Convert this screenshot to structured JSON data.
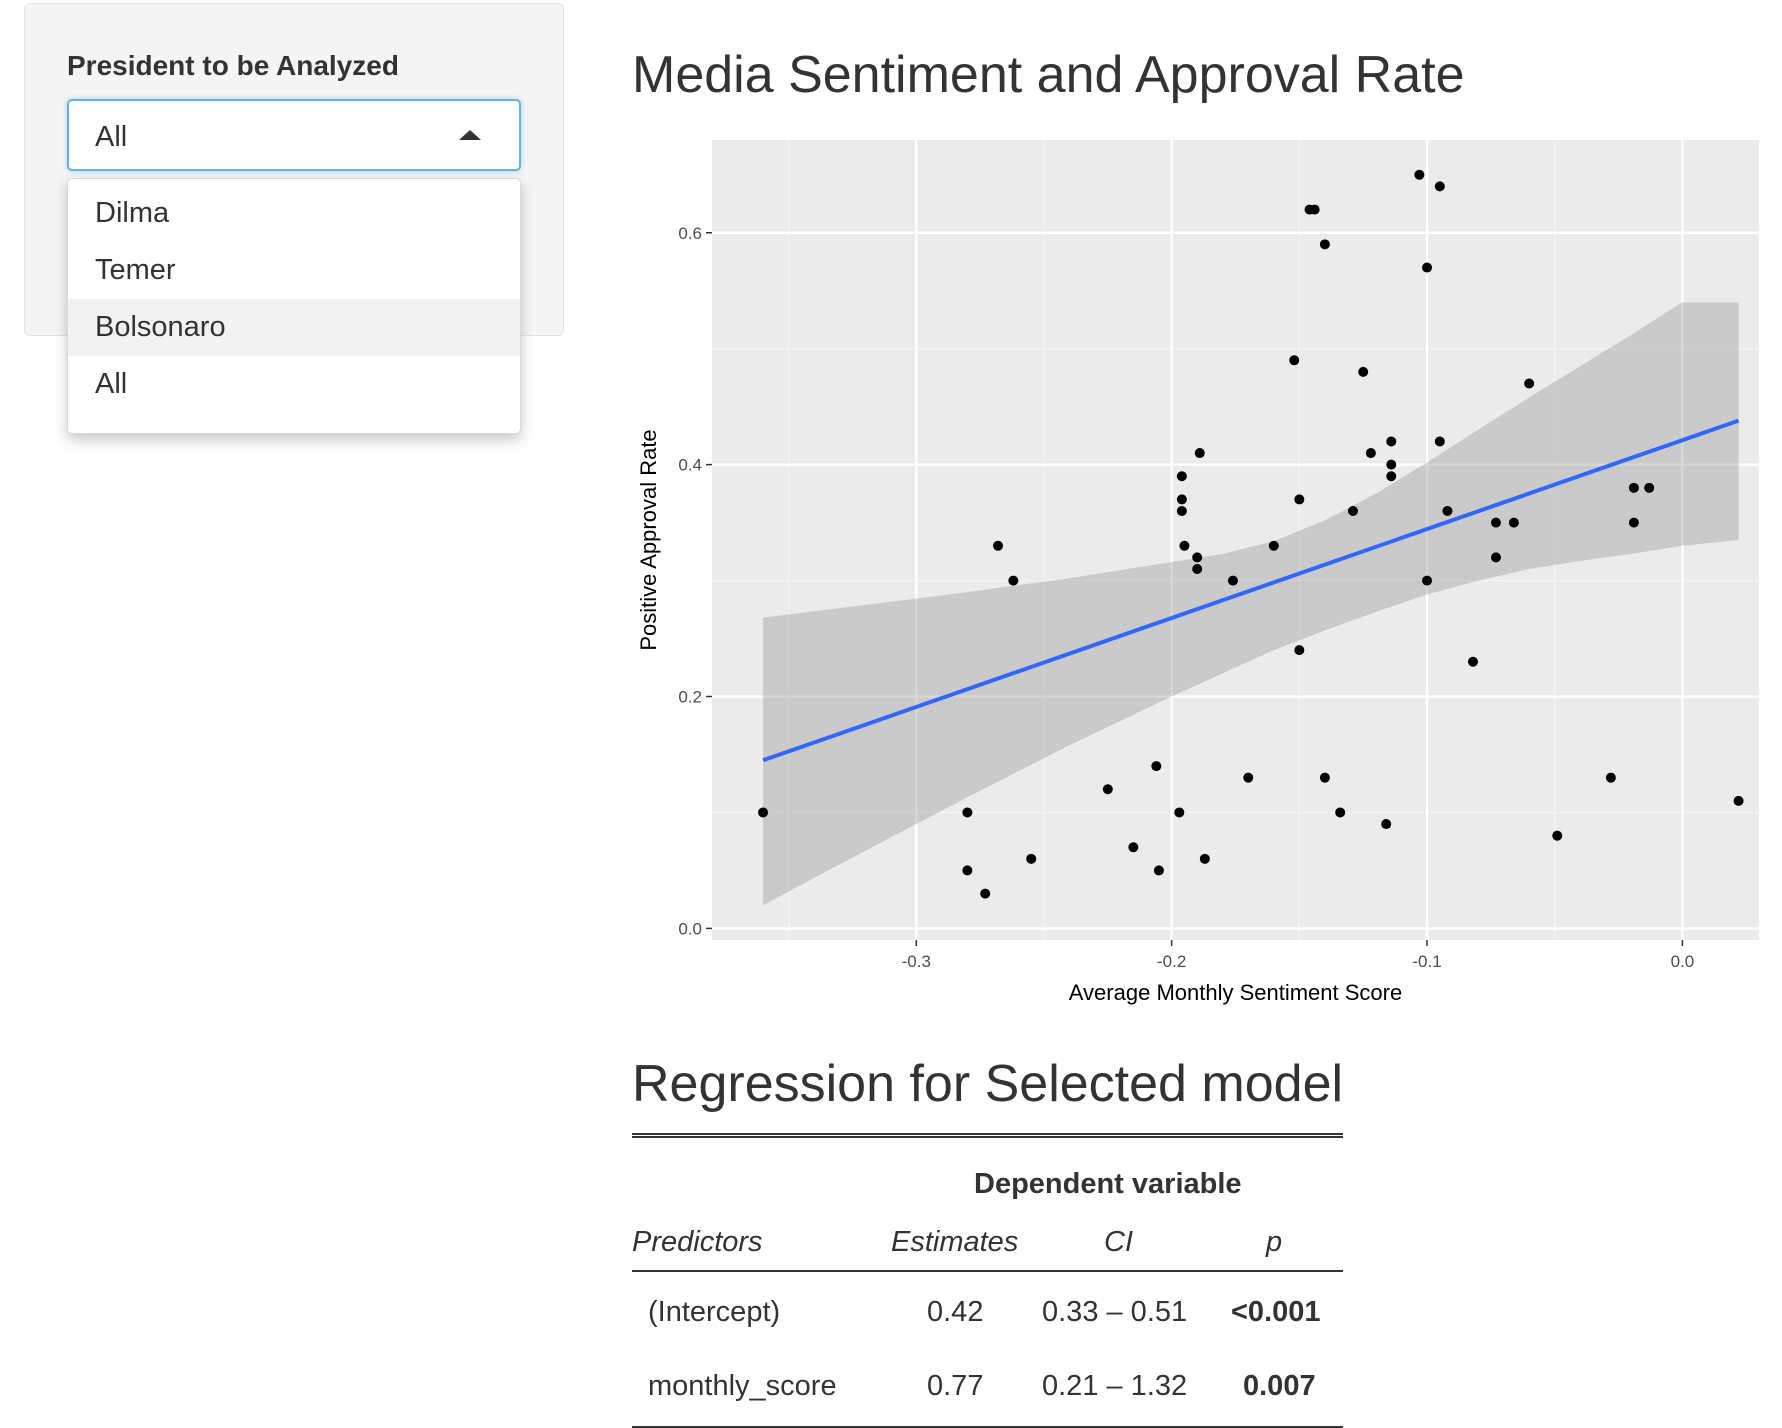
{
  "sidebar": {
    "label": "President to be Analyzed",
    "selected": "All",
    "options": [
      "Dilma",
      "Temer",
      "Bolsonaro",
      "All"
    ],
    "highlighted_option": "Bolsonaro"
  },
  "plot": {
    "heading": "Media Sentiment and Approval Rate",
    "chart_data": {
      "type": "scatter",
      "xlabel": "Average Monthly Sentiment Score",
      "ylabel": "Positive Approval Rate",
      "xlim": [
        -0.38,
        0.03
      ],
      "ylim": [
        -0.01,
        0.68
      ],
      "x_ticks": [
        -0.3,
        -0.2,
        -0.1,
        0.0
      ],
      "x_tick_labels": [
        "-0.3",
        "-0.2",
        "-0.1",
        "0.0"
      ],
      "y_ticks": [
        0.0,
        0.2,
        0.4,
        0.6
      ],
      "y_tick_labels": [
        "0.0",
        "0.2",
        "0.4",
        "0.6"
      ],
      "grid": true,
      "points": [
        [
          -0.36,
          0.1
        ],
        [
          -0.28,
          0.1
        ],
        [
          -0.28,
          0.05
        ],
        [
          -0.273,
          0.03
        ],
        [
          -0.268,
          0.33
        ],
        [
          -0.262,
          0.3
        ],
        [
          -0.255,
          0.06
        ],
        [
          -0.225,
          0.12
        ],
        [
          -0.215,
          0.07
        ],
        [
          -0.206,
          0.14
        ],
        [
          -0.205,
          0.05
        ],
        [
          -0.197,
          0.1
        ],
        [
          -0.196,
          0.39
        ],
        [
          -0.196,
          0.37
        ],
        [
          -0.196,
          0.36
        ],
        [
          -0.195,
          0.33
        ],
        [
          -0.19,
          0.32
        ],
        [
          -0.19,
          0.31
        ],
        [
          -0.189,
          0.41
        ],
        [
          -0.187,
          0.06
        ],
        [
          -0.176,
          0.3
        ],
        [
          -0.17,
          0.13
        ],
        [
          -0.16,
          0.33
        ],
        [
          -0.152,
          0.49
        ],
        [
          -0.15,
          0.37
        ],
        [
          -0.15,
          0.24
        ],
        [
          -0.146,
          0.62
        ],
        [
          -0.144,
          0.62
        ],
        [
          -0.14,
          0.59
        ],
        [
          -0.14,
          0.13
        ],
        [
          -0.134,
          0.1
        ],
        [
          -0.129,
          0.36
        ],
        [
          -0.125,
          0.48
        ],
        [
          -0.122,
          0.41
        ],
        [
          -0.116,
          0.09
        ],
        [
          -0.114,
          0.42
        ],
        [
          -0.114,
          0.4
        ],
        [
          -0.114,
          0.39
        ],
        [
          -0.103,
          0.65
        ],
        [
          -0.1,
          0.57
        ],
        [
          -0.1,
          0.3
        ],
        [
          -0.095,
          0.64
        ],
        [
          -0.095,
          0.42
        ],
        [
          -0.092,
          0.36
        ],
        [
          -0.082,
          0.23
        ],
        [
          -0.073,
          0.35
        ],
        [
          -0.073,
          0.32
        ],
        [
          -0.066,
          0.35
        ],
        [
          -0.06,
          0.47
        ],
        [
          -0.049,
          0.08
        ],
        [
          -0.028,
          0.13
        ],
        [
          -0.019,
          0.38
        ],
        [
          -0.019,
          0.35
        ],
        [
          -0.013,
          0.38
        ],
        [
          0.022,
          0.11
        ]
      ],
      "fit_line": {
        "x": [
          -0.36,
          0.022
        ],
        "y": [
          0.145,
          0.438
        ],
        "color": "#3366ff"
      },
      "confidence_band": {
        "x": [
          -0.36,
          -0.32,
          -0.28,
          -0.24,
          -0.2,
          -0.18,
          -0.16,
          -0.14,
          -0.12,
          -0.1,
          -0.08,
          -0.06,
          -0.04,
          -0.02,
          0.0,
          0.022
        ],
        "lower": [
          0.02,
          0.067,
          0.113,
          0.158,
          0.2,
          0.22,
          0.24,
          0.257,
          0.273,
          0.288,
          0.3,
          0.31,
          0.317,
          0.323,
          0.33,
          0.335
        ],
        "upper": [
          0.268,
          0.279,
          0.29,
          0.302,
          0.316,
          0.323,
          0.334,
          0.352,
          0.375,
          0.402,
          0.43,
          0.458,
          0.485,
          0.512,
          0.54,
          0.54
        ]
      }
    }
  },
  "regression": {
    "heading": "Regression for Selected model",
    "dependent_variable": "Dependent variable",
    "columns": [
      "Predictors",
      "Estimates",
      "CI",
      "p"
    ],
    "rows": [
      {
        "predictor": "(Intercept)",
        "estimate": "0.42",
        "ci": "0.33 – 0.51",
        "p": "<0.001"
      },
      {
        "predictor": "monthly_score",
        "estimate": "0.77",
        "ci": "0.21 – 1.32",
        "p": "0.007"
      }
    ]
  }
}
